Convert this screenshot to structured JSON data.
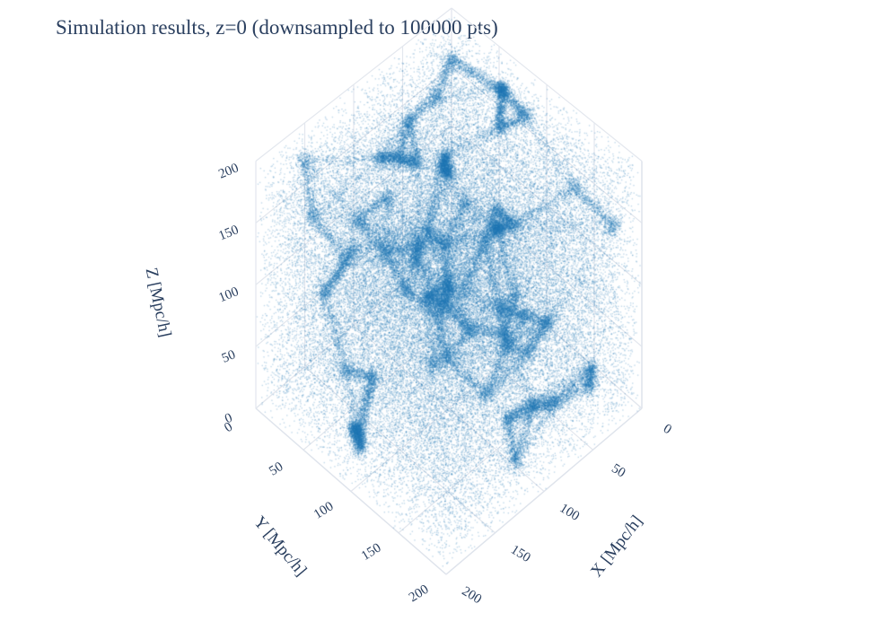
{
  "chart_data": {
    "type": "scatter3d",
    "title": "Simulation results, z=0 (downsampled to 100000 pts)",
    "point_count": 100000,
    "marker_color": "#1f77b4",
    "axes": {
      "x": {
        "label": "X [Mpc/h]",
        "range": [
          0,
          200
        ],
        "ticks": [
          0,
          50,
          100,
          150,
          200
        ],
        "tick_labels": [
          "0",
          "50",
          "100",
          "150",
          "200"
        ]
      },
      "y": {
        "label": "Y [Mpc/h]",
        "range": [
          0,
          200
        ],
        "ticks": [
          0,
          50,
          100,
          150,
          200
        ],
        "tick_labels": [
          "0",
          "50",
          "100",
          "150",
          "200"
        ]
      },
      "z": {
        "label": "Z [Mpc/h]",
        "range": [
          0,
          200
        ],
        "ticks": [
          0,
          50,
          100,
          150,
          200
        ],
        "tick_labels": [
          "0",
          "50",
          "100",
          "150",
          "200"
        ]
      }
    },
    "grid": true,
    "background": "#ffffff",
    "grid_color": "#e3e7ee"
  }
}
